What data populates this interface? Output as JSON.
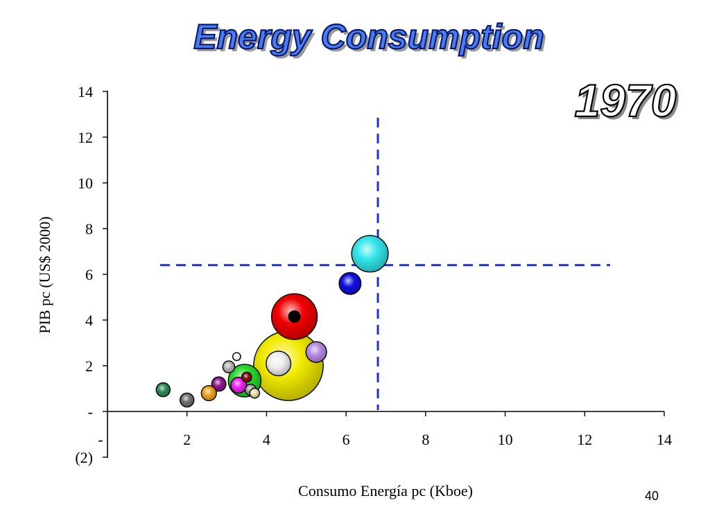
{
  "slide": {
    "title": "Energy Consumption",
    "year": "1970",
    "page_number": "40"
  },
  "colors": {
    "title_fill": "#4a7cf0",
    "title_outline": "#0a1a6e",
    "reference_line": "#1a2fd6"
  },
  "chart_data": {
    "type": "scatter",
    "variant": "bubble",
    "title": "Energy Consumption",
    "annotation": "1970",
    "xlabel": "Consumo Energía pc (Kboe)",
    "ylabel": "PIB pc (US$ 2000)",
    "xlim": [
      0,
      14
    ],
    "ylim": [
      -2,
      14
    ],
    "x_ticks": [
      2,
      4,
      6,
      8,
      10,
      12,
      14
    ],
    "x_tick_labels": [
      "2",
      "4",
      "6",
      "8",
      "10",
      "12",
      "14"
    ],
    "x_zero_label": "-",
    "y_ticks": [
      14,
      12,
      10,
      8,
      6,
      4,
      2,
      0,
      -2
    ],
    "y_tick_labels": [
      "14",
      "12",
      "10",
      "8",
      "6",
      "4",
      "2",
      "-",
      "(2)"
    ],
    "reference_lines": {
      "vertical_x": 6.8,
      "horizontal_y": 6.4
    },
    "points": [
      {
        "name": "yellow",
        "x": 4.55,
        "y": 2.0,
        "size": 1.75,
        "color": "#f2ea00"
      },
      {
        "name": "red",
        "x": 4.7,
        "y": 4.15,
        "size": 1.15,
        "color": "#f00000",
        "marker": "#000000"
      },
      {
        "name": "cyan",
        "x": 6.6,
        "y": 6.9,
        "size": 0.92,
        "color": "#33e6ea"
      },
      {
        "name": "blue",
        "x": 6.1,
        "y": 5.6,
        "size": 0.55,
        "color": "#1010e0"
      },
      {
        "name": "green",
        "x": 3.45,
        "y": 1.35,
        "size": 0.82,
        "color": "#28d828"
      },
      {
        "name": "white",
        "x": 4.3,
        "y": 2.1,
        "size": 0.62,
        "color": "#f0f0f0"
      },
      {
        "name": "lavender",
        "x": 5.25,
        "y": 2.6,
        "size": 0.52,
        "color": "#b58ce0"
      },
      {
        "name": "magenta",
        "x": 3.3,
        "y": 1.15,
        "size": 0.4,
        "color": "#f020f0"
      },
      {
        "name": "purple",
        "x": 2.8,
        "y": 1.2,
        "size": 0.36,
        "color": "#8a1a8a"
      },
      {
        "name": "orange",
        "x": 2.55,
        "y": 0.8,
        "size": 0.38,
        "color": "#f0a020"
      },
      {
        "name": "dark-gray",
        "x": 2.0,
        "y": 0.5,
        "size": 0.35,
        "color": "#707070"
      },
      {
        "name": "teal-green",
        "x": 1.4,
        "y": 0.95,
        "size": 0.35,
        "color": "#2e8a5a"
      },
      {
        "name": "light-gray",
        "x": 3.05,
        "y": 1.95,
        "size": 0.3,
        "color": "#b4b4b4"
      },
      {
        "name": "maroon",
        "x": 3.5,
        "y": 1.5,
        "size": 0.25,
        "color": "#8c1010"
      },
      {
        "name": "gray-small",
        "x": 3.6,
        "y": 0.95,
        "size": 0.28,
        "color": "#a0a0a0"
      },
      {
        "name": "khaki",
        "x": 3.7,
        "y": 0.8,
        "size": 0.25,
        "color": "#e0dca0"
      },
      {
        "name": "white-small",
        "x": 3.25,
        "y": 2.4,
        "size": 0.2,
        "color": "#ffffff"
      }
    ]
  }
}
